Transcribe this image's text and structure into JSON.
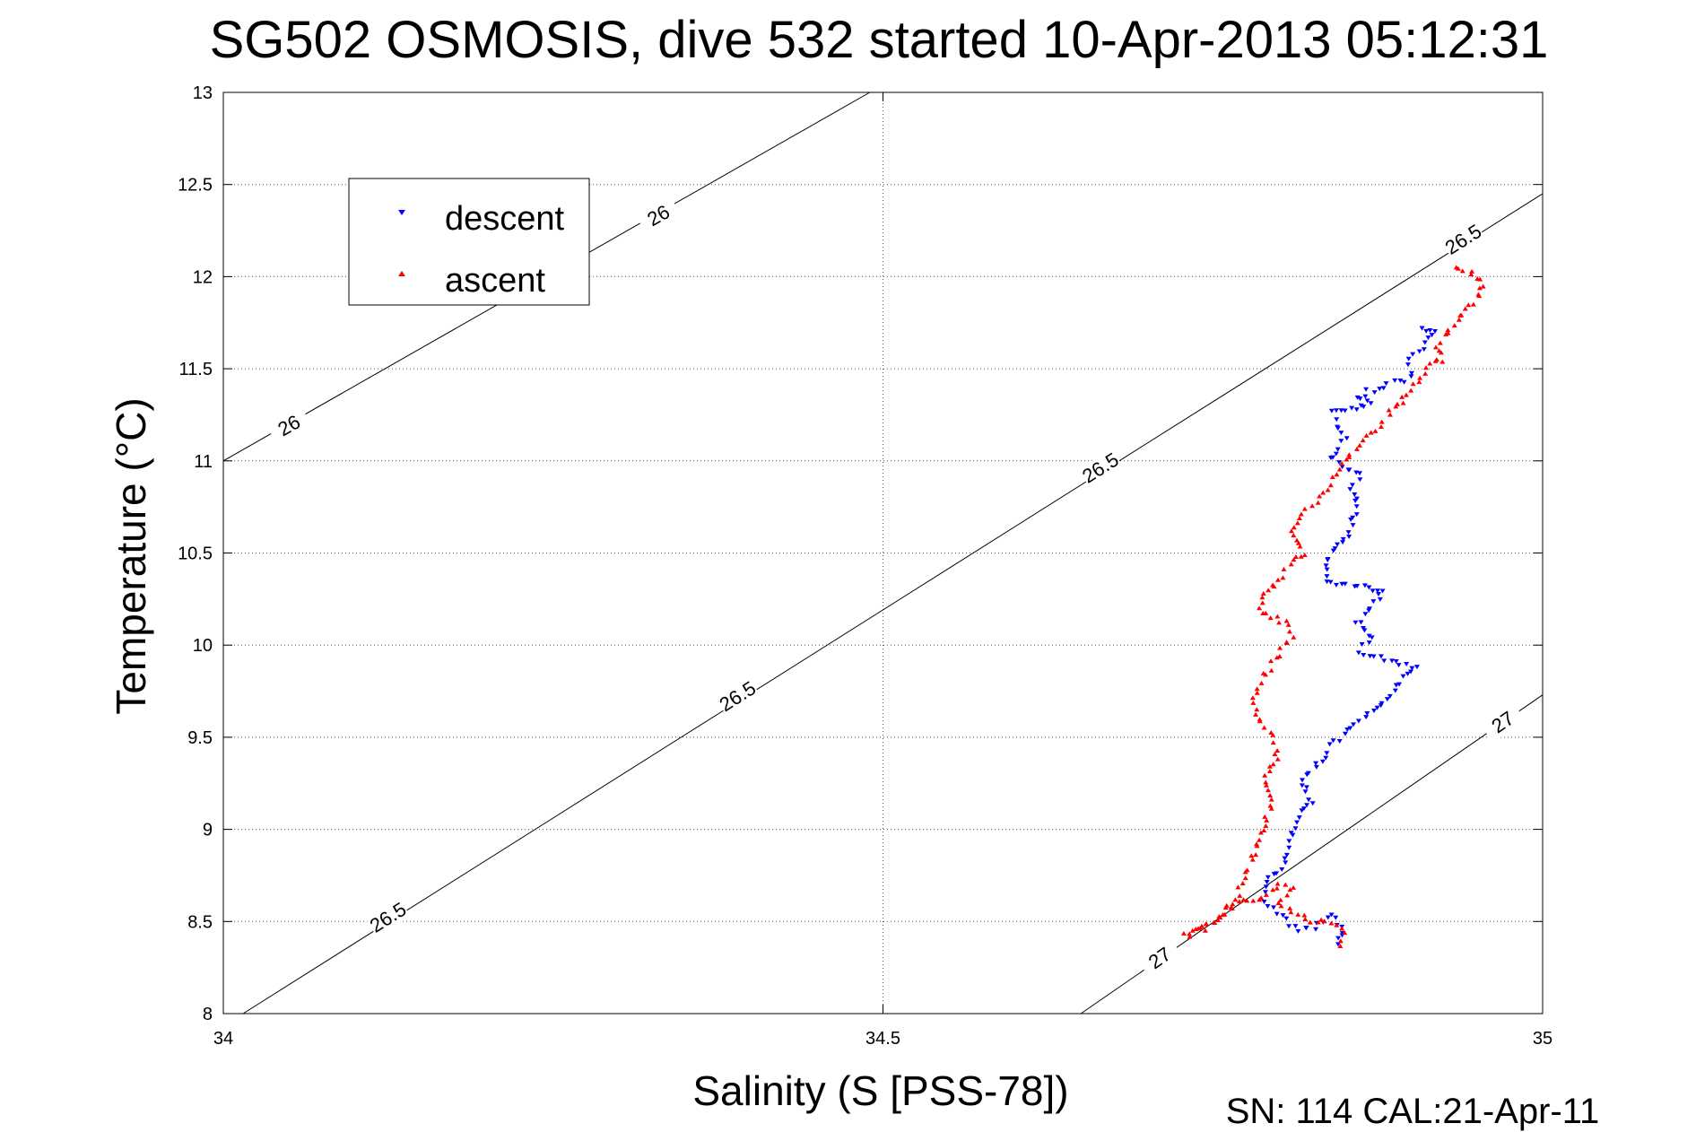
{
  "chart_data": {
    "type": "scatter",
    "title": "SG502 OSMOSIS, dive 532 started 10-Apr-2013 05:12:31",
    "xlabel": "Salinity (S [PSS-78])",
    "ylabel": "Temperature (°C)",
    "xlim": [
      34,
      35
    ],
    "ylim": [
      8,
      13
    ],
    "xticks": [
      34,
      34.5,
      35
    ],
    "xtick_labels": [
      "34",
      "34.5",
      "35"
    ],
    "yticks": [
      8,
      8.5,
      9,
      9.5,
      10,
      10.5,
      11,
      11.5,
      12,
      12.5,
      13
    ],
    "ytick_labels": [
      "8",
      "8.5",
      "9",
      "9.5",
      "10",
      "10.5",
      "11",
      "11.5",
      "12",
      "12.5",
      "13"
    ],
    "grid": true,
    "legend_position": "top-left",
    "footer": "SN: 114  CAL:21-Apr-11",
    "colors": {
      "descent": "#0000ff",
      "ascent": "#ff0000",
      "contour": "#000000"
    },
    "contours": [
      {
        "level": "26",
        "points": [
          [
            34.0,
            11.0
          ],
          [
            34.49,
            13.0
          ]
        ],
        "labels": [
          {
            "x": 34.05,
            "y": 11.19
          },
          {
            "x": 34.33,
            "y": 12.33
          }
        ]
      },
      {
        "level": "26.5",
        "points": [
          [
            34.015,
            8.0
          ],
          [
            35.0,
            12.45
          ]
        ],
        "labels": [
          {
            "x": 34.125,
            "y": 8.52
          },
          {
            "x": 34.39,
            "y": 9.72
          },
          {
            "x": 34.665,
            "y": 10.96
          },
          {
            "x": 34.94,
            "y": 12.2
          }
        ]
      },
      {
        "level": "27",
        "points": [
          [
            34.65,
            8.0
          ],
          [
            35.0,
            9.73
          ]
        ],
        "labels": [
          {
            "x": 34.71,
            "y": 8.3
          },
          {
            "x": 34.97,
            "y": 9.58
          }
        ]
      }
    ],
    "series": [
      {
        "name": "descent",
        "marker": "triangle-down",
        "path": [
          [
            34.845,
            8.38
          ],
          [
            34.85,
            8.45
          ],
          [
            34.84,
            8.53
          ],
          [
            34.83,
            8.48
          ],
          [
            34.815,
            8.45
          ],
          [
            34.8,
            8.55
          ],
          [
            34.79,
            8.62
          ],
          [
            34.79,
            8.72
          ],
          [
            34.8,
            8.76
          ],
          [
            34.808,
            8.9
          ],
          [
            34.812,
            9.05
          ],
          [
            34.825,
            9.15
          ],
          [
            34.818,
            9.28
          ],
          [
            34.83,
            9.35
          ],
          [
            34.84,
            9.45
          ],
          [
            34.855,
            9.55
          ],
          [
            34.875,
            9.65
          ],
          [
            34.89,
            9.78
          ],
          [
            34.905,
            9.88
          ],
          [
            34.88,
            9.93
          ],
          [
            34.86,
            9.97
          ],
          [
            34.87,
            10.04
          ],
          [
            34.86,
            10.12
          ],
          [
            34.87,
            10.2
          ],
          [
            34.88,
            10.3
          ],
          [
            34.86,
            10.32
          ],
          [
            34.84,
            10.33
          ],
          [
            34.835,
            10.4
          ],
          [
            34.84,
            10.5
          ],
          [
            34.85,
            10.58
          ],
          [
            34.855,
            10.65
          ],
          [
            34.86,
            10.75
          ],
          [
            34.855,
            10.85
          ],
          [
            34.862,
            10.93
          ],
          [
            34.848,
            10.97
          ],
          [
            34.84,
            11.03
          ],
          [
            34.85,
            11.12
          ],
          [
            34.845,
            11.2
          ],
          [
            34.84,
            11.26
          ],
          [
            34.855,
            11.28
          ],
          [
            34.87,
            11.3
          ],
          [
            34.86,
            11.35
          ],
          [
            34.875,
            11.4
          ],
          [
            34.9,
            11.45
          ],
          [
            34.9,
            11.55
          ],
          [
            34.91,
            11.62
          ],
          [
            34.92,
            11.7
          ],
          [
            34.905,
            11.73
          ]
        ]
      },
      {
        "name": "ascent",
        "marker": "triangle-up",
        "path": [
          [
            34.845,
            8.37
          ],
          [
            34.85,
            8.43
          ],
          [
            34.84,
            8.5
          ],
          [
            34.825,
            8.5
          ],
          [
            34.815,
            8.53
          ],
          [
            34.8,
            8.6
          ],
          [
            34.81,
            8.67
          ],
          [
            34.8,
            8.7
          ],
          [
            34.785,
            8.62
          ],
          [
            34.77,
            8.6
          ],
          [
            34.76,
            8.55
          ],
          [
            34.75,
            8.48
          ],
          [
            34.74,
            8.45
          ],
          [
            34.73,
            8.42
          ],
          [
            34.75,
            8.5
          ],
          [
            34.765,
            8.6
          ],
          [
            34.772,
            8.7
          ],
          [
            34.78,
            8.85
          ],
          [
            34.785,
            8.95
          ],
          [
            34.79,
            9.05
          ],
          [
            34.795,
            9.15
          ],
          [
            34.79,
            9.28
          ],
          [
            34.8,
            9.38
          ],
          [
            34.795,
            9.5
          ],
          [
            34.785,
            9.6
          ],
          [
            34.78,
            9.72
          ],
          [
            34.79,
            9.85
          ],
          [
            34.8,
            9.95
          ],
          [
            34.81,
            10.05
          ],
          [
            34.805,
            10.12
          ],
          [
            34.795,
            10.15
          ],
          [
            34.785,
            10.2
          ],
          [
            34.79,
            10.27
          ],
          [
            34.8,
            10.35
          ],
          [
            34.81,
            10.45
          ],
          [
            34.82,
            10.5
          ],
          [
            34.81,
            10.6
          ],
          [
            34.815,
            10.7
          ],
          [
            34.825,
            10.75
          ],
          [
            34.835,
            10.82
          ],
          [
            34.84,
            10.9
          ],
          [
            34.85,
            11.0
          ],
          [
            34.86,
            11.08
          ],
          [
            34.87,
            11.15
          ],
          [
            34.88,
            11.22
          ],
          [
            34.89,
            11.3
          ],
          [
            34.9,
            11.38
          ],
          [
            34.908,
            11.45
          ],
          [
            34.915,
            11.52
          ],
          [
            34.925,
            11.55
          ],
          [
            34.92,
            11.63
          ],
          [
            34.93,
            11.72
          ],
          [
            34.94,
            11.8
          ],
          [
            34.95,
            11.88
          ],
          [
            34.955,
            11.95
          ],
          [
            34.95,
            12.0
          ],
          [
            34.945,
            12.03
          ],
          [
            34.93,
            12.04
          ]
        ]
      }
    ]
  }
}
